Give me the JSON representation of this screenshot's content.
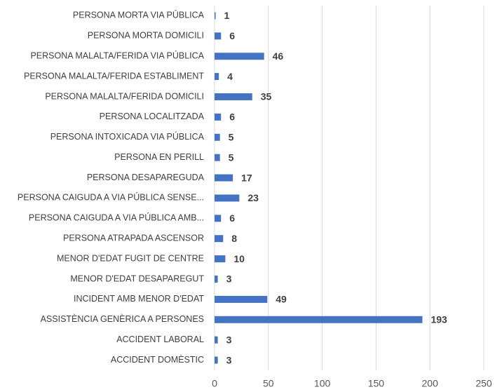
{
  "chart_data": {
    "type": "barh",
    "categories": [
      "PERSONA MORTA VIA PÚBLICA",
      "PERSONA MORTA DOMICILI",
      "PERSONA MALALTA/FERIDA VIA PÚBLICA",
      "PERSONA MALALTA/FERIDA ESTABLIMENT",
      "PERSONA MALALTA/FERIDA DOMICILI",
      "PERSONA LOCALITZADA",
      "PERSONA INTOXICADA VIA PÚBLICA",
      "PERSONA EN PERILL",
      "PERSONA DESAPAREGUDA",
      "PERSONA CAIGUDA A VIA PÚBLICA SENSE...",
      "PERSONA CAIGUDA A VIA PÚBLICA AMB...",
      "PERSONA ATRAPADA ASCENSOR",
      "MENOR D'EDAT FUGIT DE CENTRE",
      "MENOR D'EDAT DESAPAREGUT",
      "INCIDENT AMB MENOR D'EDAT",
      "ASSISTÈNCIA GENÈRICA A PERSONES",
      "ACCIDENT LABORAL",
      "ACCIDENT DOMÈSTIC"
    ],
    "values": [
      1,
      6,
      46,
      4,
      35,
      6,
      5,
      5,
      17,
      23,
      6,
      8,
      10,
      3,
      49,
      193,
      3,
      3
    ],
    "color": "#4472c4",
    "xlim": [
      0,
      250
    ],
    "xticks": [
      0,
      50,
      100,
      150,
      200,
      250
    ],
    "grid": true
  }
}
